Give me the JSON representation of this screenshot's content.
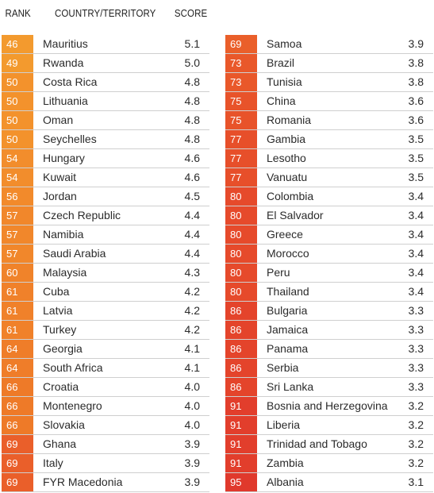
{
  "header": {
    "rank": "RANK",
    "country": "COUNTRY/TERRITORY",
    "score": "SCORE"
  },
  "colors": {
    "orange_light": "#f39a2e",
    "orange": "#ee7a28",
    "red_orange": "#e8522a",
    "red": "#e0392c"
  },
  "left_rows": [
    {
      "rank": "46",
      "country": "Mauritius",
      "score": "5.1",
      "color": "#f39a2e"
    },
    {
      "rank": "49",
      "country": "Rwanda",
      "score": "5.0",
      "color": "#f39a2e"
    },
    {
      "rank": "50",
      "country": "Costa Rica",
      "score": "4.8",
      "color": "#f3922c"
    },
    {
      "rank": "50",
      "country": "Lithuania",
      "score": "4.8",
      "color": "#f3922c"
    },
    {
      "rank": "50",
      "country": "Oman",
      "score": "4.8",
      "color": "#f3922c"
    },
    {
      "rank": "50",
      "country": "Seychelles",
      "score": "4.8",
      "color": "#f3922c"
    },
    {
      "rank": "54",
      "country": "Hungary",
      "score": "4.6",
      "color": "#f28d2c"
    },
    {
      "rank": "54",
      "country": "Kuwait",
      "score": "4.6",
      "color": "#f28d2c"
    },
    {
      "rank": "56",
      "country": "Jordan",
      "score": "4.5",
      "color": "#f28a2b"
    },
    {
      "rank": "57",
      "country": "Czech Republic",
      "score": "4.4",
      "color": "#f1872b"
    },
    {
      "rank": "57",
      "country": "Namibia",
      "score": "4.4",
      "color": "#f1872b"
    },
    {
      "rank": "57",
      "country": "Saudi Arabia",
      "score": "4.4",
      "color": "#f1872b"
    },
    {
      "rank": "60",
      "country": "Malaysia",
      "score": "4.3",
      "color": "#f0832a"
    },
    {
      "rank": "61",
      "country": "Cuba",
      "score": "4.2",
      "color": "#f0812a"
    },
    {
      "rank": "61",
      "country": "Latvia",
      "score": "4.2",
      "color": "#f0812a"
    },
    {
      "rank": "61",
      "country": "Turkey",
      "score": "4.2",
      "color": "#f0812a"
    },
    {
      "rank": "64",
      "country": "Georgia",
      "score": "4.1",
      "color": "#ef7d29"
    },
    {
      "rank": "64",
      "country": "South Africa",
      "score": "4.1",
      "color": "#ef7d29"
    },
    {
      "rank": "66",
      "country": "Croatia",
      "score": "4.0",
      "color": "#ee7a28"
    },
    {
      "rank": "66",
      "country": "Montenegro",
      "score": "4.0",
      "color": "#ee7a28"
    },
    {
      "rank": "66",
      "country": "Slovakia",
      "score": "4.0",
      "color": "#ee7a28"
    },
    {
      "rank": "69",
      "country": "Ghana",
      "score": "3.9",
      "color": "#ea5f2a"
    },
    {
      "rank": "69",
      "country": "Italy",
      "score": "3.9",
      "color": "#ea5f2a"
    },
    {
      "rank": "69",
      "country": "FYR Macedonia",
      "score": "3.9",
      "color": "#ea5f2a"
    }
  ],
  "right_rows": [
    {
      "rank": "69",
      "country": "Samoa",
      "score": "3.9",
      "color": "#ea5f2a"
    },
    {
      "rank": "73",
      "country": "Brazil",
      "score": "3.8",
      "color": "#e9582a"
    },
    {
      "rank": "73",
      "country": "Tunisia",
      "score": "3.8",
      "color": "#e9582a"
    },
    {
      "rank": "75",
      "country": "China",
      "score": "3.6",
      "color": "#e8532a"
    },
    {
      "rank": "75",
      "country": "Romania",
      "score": "3.6",
      "color": "#e8532a"
    },
    {
      "rank": "77",
      "country": "Gambia",
      "score": "3.5",
      "color": "#e74f2a"
    },
    {
      "rank": "77",
      "country": "Lesotho",
      "score": "3.5",
      "color": "#e74f2a"
    },
    {
      "rank": "77",
      "country": "Vanuatu",
      "score": "3.5",
      "color": "#e74f2a"
    },
    {
      "rank": "80",
      "country": "Colombia",
      "score": "3.4",
      "color": "#e64a2b"
    },
    {
      "rank": "80",
      "country": "El Salvador",
      "score": "3.4",
      "color": "#e64a2b"
    },
    {
      "rank": "80",
      "country": "Greece",
      "score": "3.4",
      "color": "#e64a2b"
    },
    {
      "rank": "80",
      "country": "Morocco",
      "score": "3.4",
      "color": "#e64a2b"
    },
    {
      "rank": "80",
      "country": "Peru",
      "score": "3.4",
      "color": "#e64a2b"
    },
    {
      "rank": "80",
      "country": "Thailand",
      "score": "3.4",
      "color": "#e64a2b"
    },
    {
      "rank": "86",
      "country": "Bulgaria",
      "score": "3.3",
      "color": "#e4442b"
    },
    {
      "rank": "86",
      "country": "Jamaica",
      "score": "3.3",
      "color": "#e4442b"
    },
    {
      "rank": "86",
      "country": "Panama",
      "score": "3.3",
      "color": "#e4442b"
    },
    {
      "rank": "86",
      "country": "Serbia",
      "score": "3.3",
      "color": "#e4442b"
    },
    {
      "rank": "86",
      "country": "Sri Lanka",
      "score": "3.3",
      "color": "#e4442b"
    },
    {
      "rank": "91",
      "country": "Bosnia and Herzegovina",
      "score": "3.2",
      "color": "#e23e2c"
    },
    {
      "rank": "91",
      "country": "Liberia",
      "score": "3.2",
      "color": "#e23e2c"
    },
    {
      "rank": "91",
      "country": "Trinidad and Tobago",
      "score": "3.2",
      "color": "#e23e2c"
    },
    {
      "rank": "91",
      "country": "Zambia",
      "score": "3.2",
      "color": "#e23e2c"
    },
    {
      "rank": "95",
      "country": "Albania",
      "score": "3.1",
      "color": "#e0392c"
    }
  ]
}
